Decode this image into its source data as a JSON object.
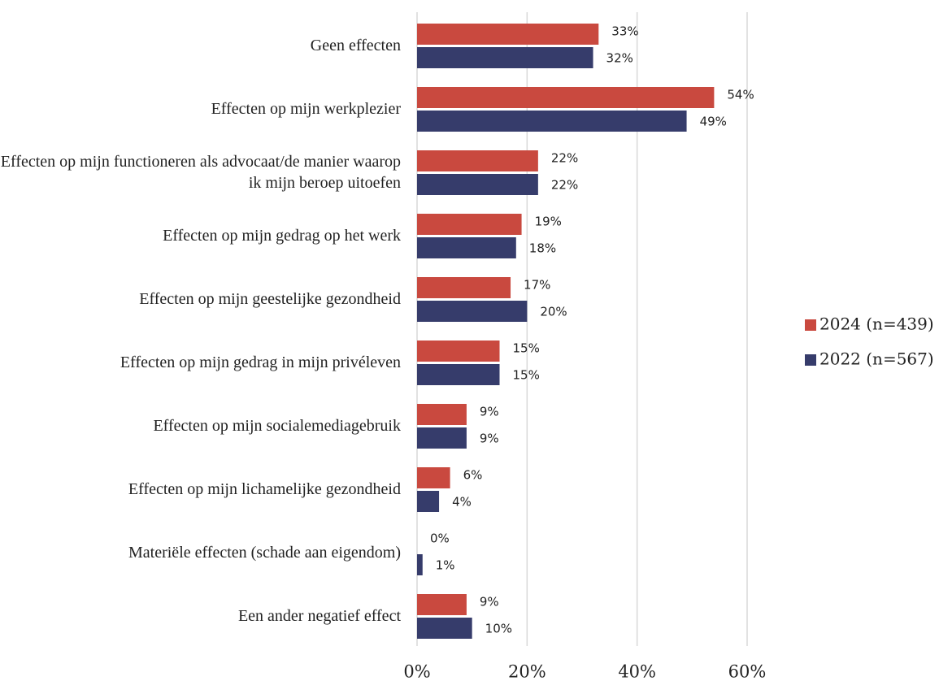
{
  "chart_data": {
    "type": "barh",
    "categories": [
      "Geen effecten",
      "Effecten op mijn werkplezier",
      "Effecten op mijn functioneren als advocaat/de manier waarop ik mijn beroep uitoefen",
      "Effecten op mijn gedrag op het werk",
      "Effecten op mijn geestelijke gezondheid",
      "Effecten op mijn gedrag in mijn privéleven",
      "Effecten op mijn socialemediagebruik",
      "Effecten op mijn lichamelijke gezondheid",
      "Materiële effecten (schade aan eigendom)",
      "Een ander negatief effect"
    ],
    "series": [
      {
        "name": "2024 (n=439)",
        "color": "#c9493f",
        "values": [
          33,
          54,
          22,
          19,
          17,
          15,
          9,
          6,
          0,
          9
        ],
        "value_labels": [
          "33%",
          "54%",
          "22%",
          "19%",
          "17%",
          "15%",
          "9%",
          "6%",
          "0%",
          "9%"
        ]
      },
      {
        "name": "2022 (n=567)",
        "color": "#363c6b",
        "values": [
          32,
          49,
          22,
          18,
          20,
          15,
          9,
          4,
          1,
          10
        ],
        "value_labels": [
          "32%",
          "49%",
          "22%",
          "18%",
          "20%",
          "15%",
          "9%",
          "4%",
          "1%",
          "10%"
        ]
      }
    ],
    "xlim": [
      0,
      60
    ],
    "xticks": [
      {
        "value": 0,
        "label": "0%"
      },
      {
        "value": 20,
        "label": "20%"
      },
      {
        "value": 40,
        "label": "40%"
      },
      {
        "value": 60,
        "label": "60%"
      }
    ],
    "grid": true,
    "legend": "right"
  }
}
